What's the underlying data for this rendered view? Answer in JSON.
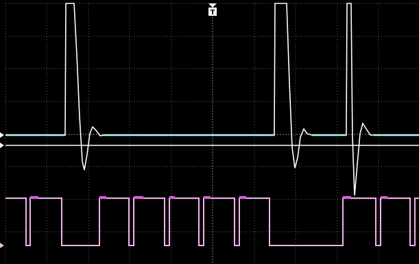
{
  "trigger_marker": {
    "label": "T"
  }
}
